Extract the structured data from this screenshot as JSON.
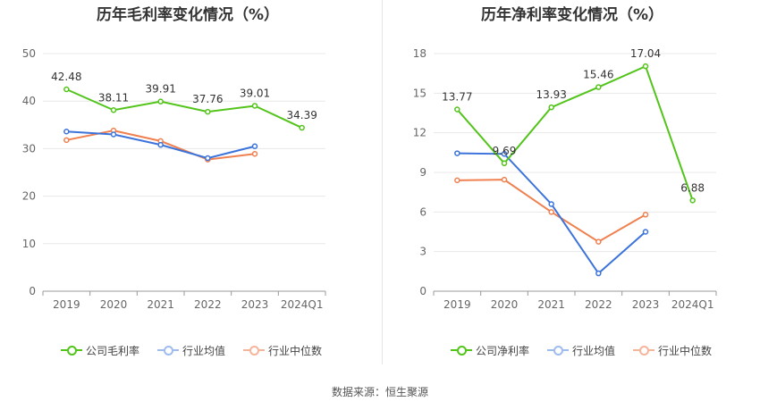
{
  "source": "数据来源：恒生聚源",
  "colors": {
    "company": "#52c41a",
    "avg": "#3b73db",
    "median": "#f08050"
  },
  "chart_data": [
    {
      "type": "line",
      "title": "历年毛利率变化情况（%）",
      "categories": [
        "2019",
        "2020",
        "2021",
        "2022",
        "2023",
        "2024Q1"
      ],
      "ylim": [
        0,
        50
      ],
      "yticks": [
        0,
        10,
        20,
        30,
        40,
        50
      ],
      "grid": true,
      "legend_position": "bottom",
      "series": [
        {
          "name": "公司毛利率",
          "key": "company",
          "values": [
            42.48,
            38.11,
            39.91,
            37.76,
            39.01,
            34.39
          ],
          "labels": [
            "42.48",
            "38.11",
            "39.91",
            "37.76",
            "39.01",
            "34.39"
          ]
        },
        {
          "name": "行业均值",
          "key": "avg",
          "values": [
            33.6,
            33.0,
            30.8,
            28.0,
            30.5,
            null
          ]
        },
        {
          "name": "行业中位数",
          "key": "median",
          "values": [
            31.8,
            33.8,
            31.6,
            27.7,
            28.9,
            null
          ]
        }
      ]
    },
    {
      "type": "line",
      "title": "历年净利率变化情况（%）",
      "categories": [
        "2019",
        "2020",
        "2021",
        "2022",
        "2023",
        "2024Q1"
      ],
      "ylim": [
        0,
        18
      ],
      "yticks": [
        0,
        3,
        6,
        9,
        12,
        15,
        18
      ],
      "grid": true,
      "legend_position": "bottom",
      "series": [
        {
          "name": "公司净利率",
          "key": "company",
          "values": [
            13.77,
            9.69,
            13.93,
            15.46,
            17.04,
            6.88
          ],
          "labels": [
            "13.77",
            "9.69",
            "13.93",
            "15.46",
            "17.04",
            "6.88"
          ]
        },
        {
          "name": "行业均值",
          "key": "avg",
          "values": [
            10.45,
            10.4,
            6.6,
            1.35,
            4.5,
            null
          ]
        },
        {
          "name": "行业中位数",
          "key": "median",
          "values": [
            8.4,
            8.45,
            6.0,
            3.75,
            5.8,
            null
          ]
        }
      ]
    }
  ]
}
